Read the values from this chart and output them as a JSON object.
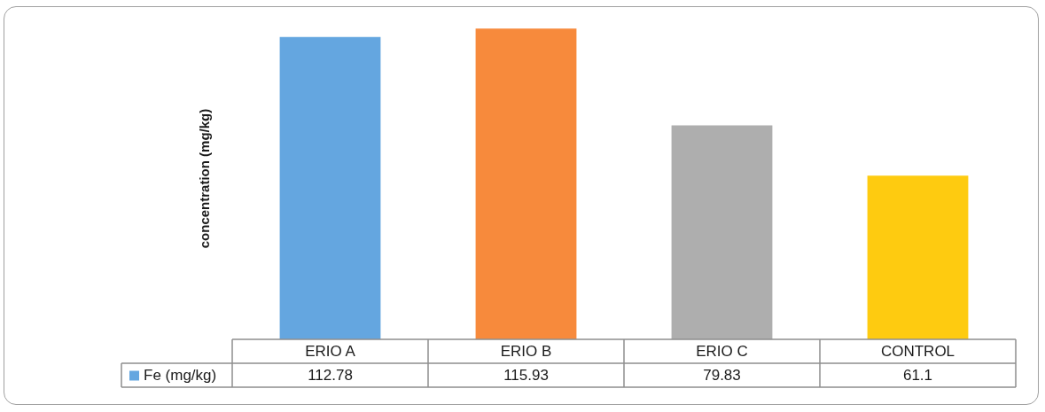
{
  "chart_data": {
    "type": "bar",
    "ylabel": "concentration (mg/kg)",
    "categories": [
      "ERIO A",
      "ERIO B",
      "ERIO C",
      "CONTROL"
    ],
    "series": [
      {
        "name": "Fe (mg/kg)",
        "color": "#64a6e0",
        "colors": [
          "#64a6e0",
          "#f78a3c",
          "#aeaeae",
          "#fecb10"
        ],
        "values": [
          112.78,
          115.93,
          79.83,
          61.1
        ]
      }
    ],
    "data_labels": true,
    "legend": "bottom",
    "tick_labels": "x"
  }
}
